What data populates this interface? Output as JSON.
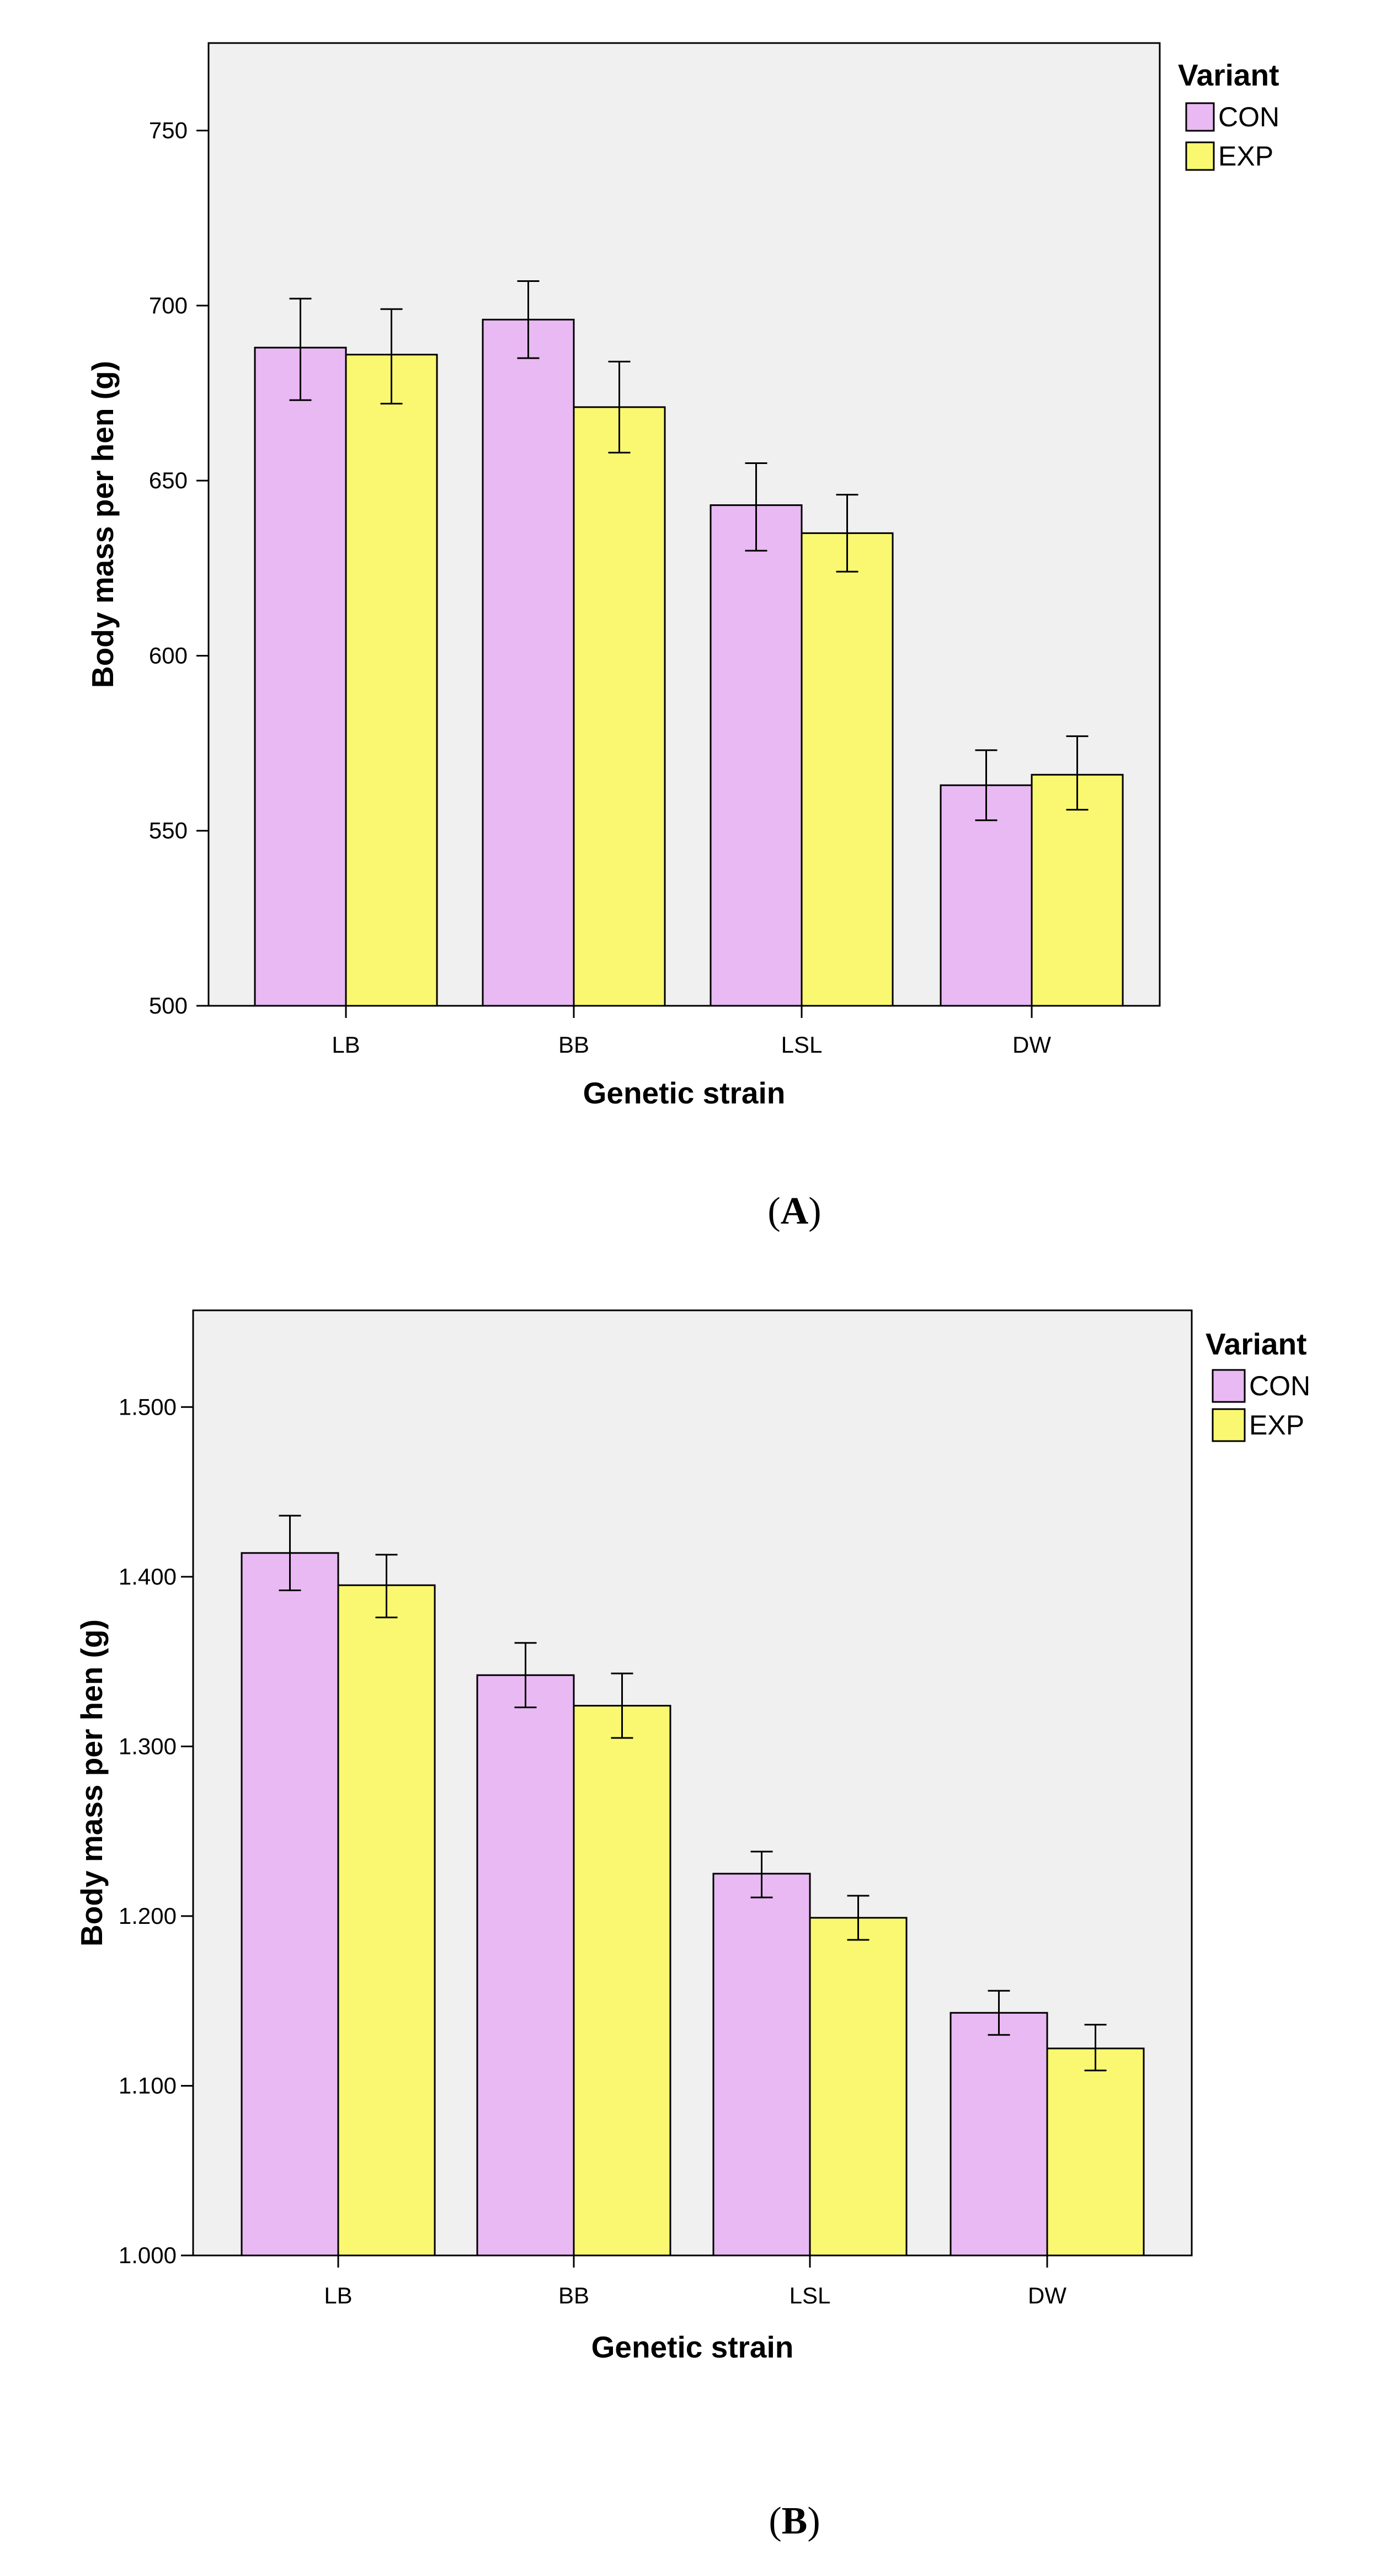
{
  "colors": {
    "con": "#E9B9F3",
    "exp": "#FAF870",
    "plot_bg": "#F0F0F0"
  },
  "chart_data": [
    {
      "type": "bar",
      "panel": "A",
      "xlabel": "Genetic strain",
      "ylabel": "Body mass per hen (g)",
      "ylim": [
        500,
        775
      ],
      "yticks": [
        500,
        550,
        600,
        650,
        700,
        750
      ],
      "ytick_labels": [
        "500",
        "550",
        "600",
        "650",
        "700",
        "750"
      ],
      "categories": [
        "LB",
        "BB",
        "LSL",
        "DW"
      ],
      "legend_title": "Variant",
      "series": [
        {
          "name": "CON",
          "values": [
            688,
            696,
            643,
            563
          ],
          "err_low": [
            673,
            685,
            630,
            553
          ],
          "err_high": [
            702,
            707,
            655,
            573
          ]
        },
        {
          "name": "EXP",
          "values": [
            686,
            671,
            635,
            566
          ],
          "err_low": [
            672,
            658,
            624,
            556
          ],
          "err_high": [
            699,
            684,
            646,
            577
          ]
        }
      ]
    },
    {
      "type": "bar",
      "panel": "B",
      "xlabel": "Genetic strain",
      "ylabel": "Body mass per hen (g)",
      "ylim": [
        1.0,
        1.557
      ],
      "yticks": [
        1.0,
        1.1,
        1.2,
        1.3,
        1.4,
        1.5
      ],
      "ytick_labels": [
        "1.000",
        "1.100",
        "1.200",
        "1.300",
        "1.400",
        "1.500"
      ],
      "categories": [
        "LB",
        "BB",
        "LSL",
        "DW"
      ],
      "legend_title": "Variant",
      "series": [
        {
          "name": "CON",
          "values": [
            1.414,
            1.342,
            1.225,
            1.143
          ],
          "err_low": [
            1.392,
            1.323,
            1.211,
            1.13
          ],
          "err_high": [
            1.436,
            1.361,
            1.238,
            1.156
          ]
        },
        {
          "name": "EXP",
          "values": [
            1.395,
            1.324,
            1.199,
            1.122
          ],
          "err_low": [
            1.376,
            1.305,
            1.186,
            1.109
          ],
          "err_high": [
            1.413,
            1.343,
            1.212,
            1.136
          ]
        }
      ]
    }
  ]
}
